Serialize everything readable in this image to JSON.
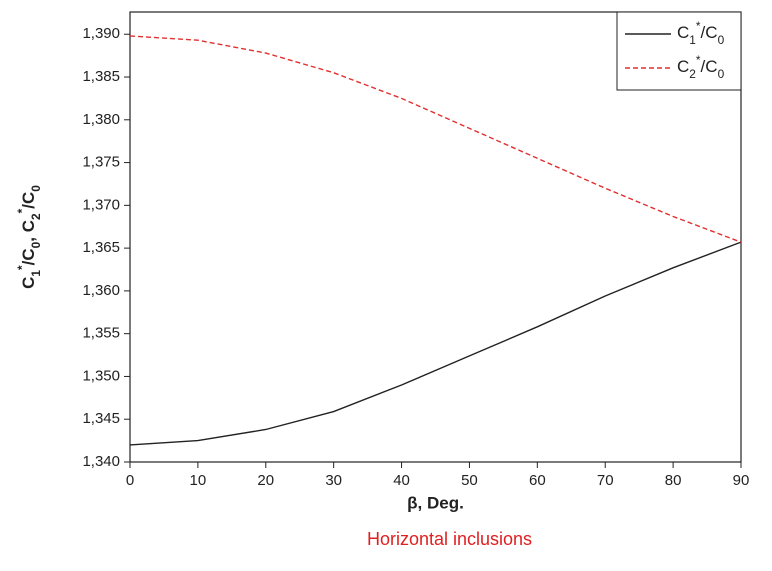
{
  "chart_data": {
    "type": "line",
    "x_label": "β, Deg.",
    "y_label": "C1*/C0, C2*/C0",
    "caption": "Horizontal inclusions",
    "x": [
      0,
      10,
      20,
      30,
      40,
      50,
      60,
      70,
      80,
      90
    ],
    "series": [
      {
        "name": "C1*/C0",
        "color": "#222222",
        "dash": "solid",
        "values": [
          1.342,
          1.3425,
          1.3438,
          1.3459,
          1.349,
          1.3524,
          1.3558,
          1.3594,
          1.3627,
          1.3657
        ]
      },
      {
        "name": "C2*/C0",
        "color": "#e03030",
        "dash": "dashed",
        "values": [
          1.3898,
          1.3893,
          1.3878,
          1.3855,
          1.3825,
          1.379,
          1.3755,
          1.372,
          1.3687,
          1.3657
        ]
      }
    ],
    "xlim": [
      0,
      90
    ],
    "ylim": [
      1.34,
      1.3926
    ],
    "xticks": [
      0,
      10,
      20,
      30,
      40,
      50,
      60,
      70,
      80,
      90
    ],
    "yticks": [
      {
        "value": 1.34,
        "label": "1,340"
      },
      {
        "value": 1.345,
        "label": "1,345"
      },
      {
        "value": 1.35,
        "label": "1,350"
      },
      {
        "value": 1.355,
        "label": "1,355"
      },
      {
        "value": 1.36,
        "label": "1,360"
      },
      {
        "value": 1.365,
        "label": "1,365"
      },
      {
        "value": 1.37,
        "label": "1,370"
      },
      {
        "value": 1.375,
        "label": "1,375"
      },
      {
        "value": 1.38,
        "label": "1,380"
      },
      {
        "value": 1.385,
        "label": "1,385"
      },
      {
        "value": 1.39,
        "label": "1,390"
      }
    ],
    "legend": "upper right",
    "caption_color": "#e02020"
  }
}
